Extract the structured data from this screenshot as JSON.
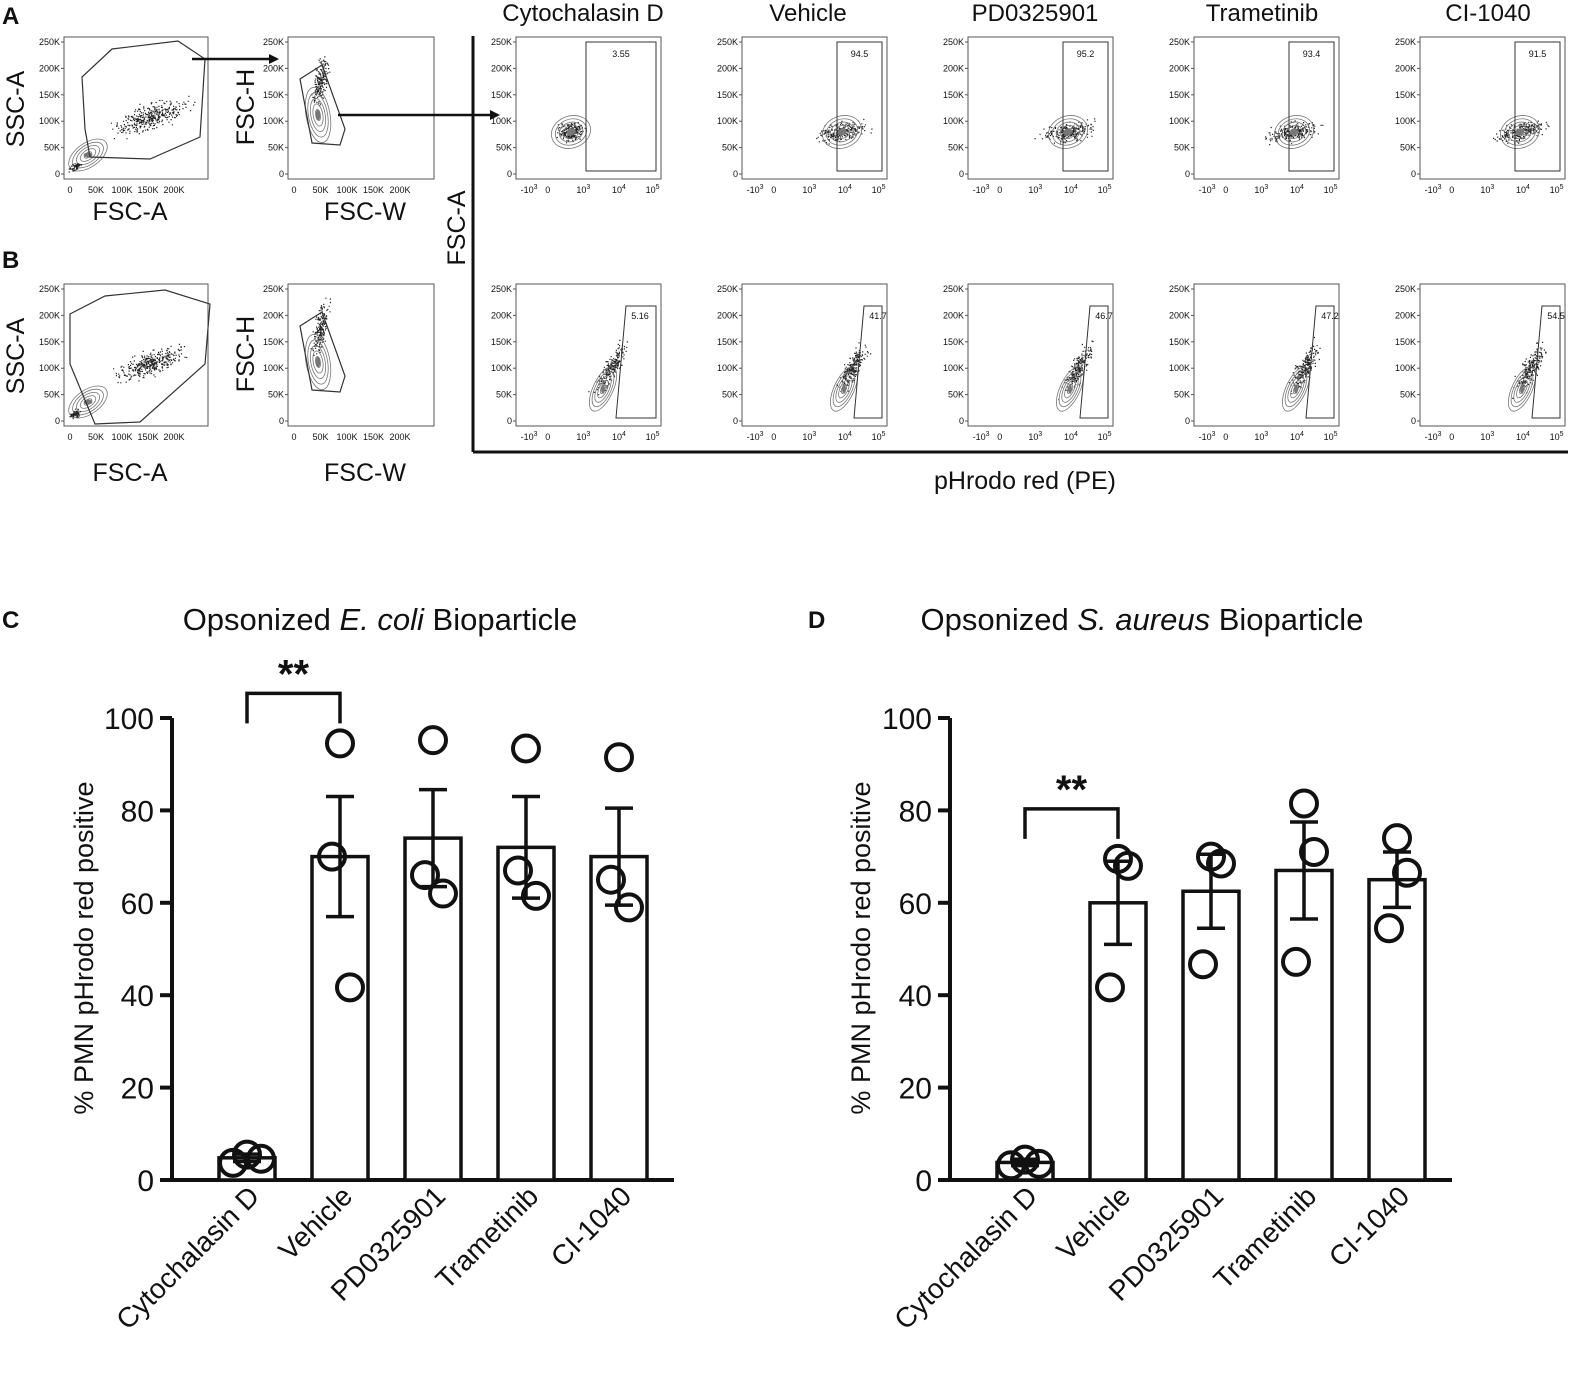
{
  "panels": {
    "a": "A",
    "b": "B",
    "c": "C",
    "d": "D"
  },
  "gating": {
    "ssc_label": "SSC-A",
    "fsc_a_label": "FSC-A",
    "fsc_h_label": "FSC-H",
    "fsc_w_label": "FSC-W",
    "y_ticks": [
      "250K",
      "200K",
      "150K",
      "100K",
      "50K",
      "0"
    ],
    "x_ticks_lin": [
      "0",
      "50K",
      "100K",
      "150K",
      "200K"
    ],
    "x_ticks_log": [
      "-10",
      "0",
      "10",
      "10",
      "10"
    ],
    "x_ticks_log_exp": [
      "3",
      "",
      "3",
      "4",
      "5"
    ],
    "y_axis_shared": "FSC-A",
    "x_axis_shared": "pHrodo red (PE)"
  },
  "conditions": [
    "Cytochalasin D",
    "Vehicle",
    "PD0325901",
    "Trametinib",
    "CI-1040"
  ],
  "gate_values_row_a": [
    "3.55",
    "94.5",
    "95.2",
    "93.4",
    "91.5"
  ],
  "gate_values_row_b": [
    "5.16",
    "41.7",
    "46.7",
    "47.2",
    "54.5"
  ],
  "chart_data": [
    {
      "type": "bar",
      "title_prefix": "Opsonized ",
      "title_italic": "E. coli",
      "title_suffix": " Bioparticle",
      "ylabel": "% PMN pHrodo red positive",
      "ylim": [
        0,
        100
      ],
      "yticks": [
        0,
        20,
        40,
        60,
        80,
        100
      ],
      "categories": [
        "Cytochalasin D",
        "Vehicle",
        "PD0325901",
        "Trametinib",
        "CI-1040"
      ],
      "values": [
        4.8,
        70,
        74,
        72,
        70
      ],
      "sem": [
        0.8,
        13,
        10.5,
        11,
        10.5
      ],
      "points": [
        [
          3.7,
          5.5,
          4.6
        ],
        [
          94.5,
          70,
          41.7
        ],
        [
          95.2,
          66,
          62
        ],
        [
          93.4,
          67,
          61.5
        ],
        [
          91.5,
          65,
          59
        ]
      ],
      "significance": {
        "from": "Cytochalasin D",
        "to": "Vehicle",
        "label": "**"
      }
    },
    {
      "type": "bar",
      "title_prefix": "Opsonized ",
      "title_italic": "S. aureus",
      "title_suffix": " Bioparticle",
      "ylabel": "% PMN pHrodo red positive",
      "ylim": [
        0,
        100
      ],
      "yticks": [
        0,
        20,
        40,
        60,
        80,
        100
      ],
      "categories": [
        "Cytochalasin D",
        "Vehicle",
        "PD0325901",
        "Trametinib",
        "CI-1040"
      ],
      "values": [
        3.8,
        60,
        62.5,
        67,
        65
      ],
      "sem": [
        0.7,
        9,
        8,
        10.5,
        6
      ],
      "points": [
        [
          3.2,
          4.4,
          3.5
        ],
        [
          69.5,
          41.7,
          68
        ],
        [
          70,
          46.7,
          68.5
        ],
        [
          81.5,
          47.2,
          71
        ],
        [
          74,
          54.5,
          66.5
        ]
      ],
      "significance": {
        "from": "Cytochalasin D",
        "to": "Vehicle",
        "label": "**"
      }
    }
  ]
}
